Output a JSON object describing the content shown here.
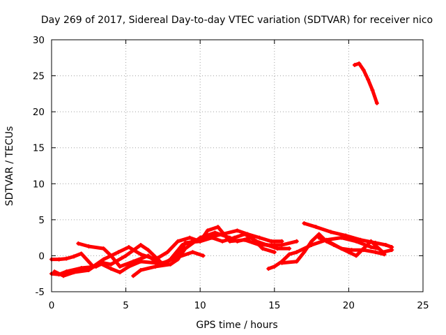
{
  "chart_data": {
    "type": "line",
    "title": "Day 269 of 2017, Sidereal Day-to-day VTEC variation (SDTVAR) for receiver nico",
    "xlabel": "GPS time / hours",
    "ylabel": "SDTVAR / TECUs",
    "xlim": [
      0,
      25
    ],
    "ylim": [
      -5,
      30
    ],
    "x_ticks": [
      0,
      5,
      10,
      15,
      20,
      25
    ],
    "y_ticks": [
      -5,
      0,
      5,
      10,
      15,
      20,
      25,
      30
    ],
    "grid": true,
    "color": "#ff0000",
    "series": [
      {
        "name": "track-1",
        "x": [
          0,
          0.5,
          1,
          1.5,
          2.0,
          2.8,
          3.5,
          4.5,
          5.2,
          6.0,
          7.0,
          7.8,
          8.5,
          9.3,
          10.0,
          10.8,
          11.5,
          12.3,
          13.0,
          13.8,
          14.5,
          15.2,
          16.0
        ],
        "y": [
          -0.5,
          -0.5,
          -0.4,
          -0.1,
          0.3,
          -1.5,
          -0.5,
          0.5,
          1.2,
          0.2,
          -0.5,
          0.5,
          2.0,
          2.5,
          2.0,
          2.5,
          2.0,
          2.5,
          3.0,
          2.0,
          1.5,
          1.0,
          1.0
        ]
      },
      {
        "name": "track-2",
        "x": [
          0,
          0.5,
          1.0,
          2.0,
          3.0,
          3.5,
          4.0,
          5.0,
          6.0,
          6.5,
          7.5,
          8.5,
          9.0,
          10.0,
          10.5,
          11.2,
          12.0,
          13.0,
          14.0,
          15.0,
          15.5,
          16.5
        ],
        "y": [
          -2.5,
          -2.6,
          -2.2,
          -1.7,
          -1.5,
          -1.0,
          -1.2,
          0.0,
          1.5,
          0.8,
          -1.2,
          0.0,
          1.8,
          2.0,
          3.5,
          4.0,
          2.0,
          2.2,
          1.5,
          1.5,
          1.5,
          2.0
        ]
      },
      {
        "name": "track-3",
        "x": [
          1.8,
          2.5,
          3.5,
          4.0,
          4.6,
          5.5,
          6.5,
          7.0,
          7.5,
          8.0,
          8.8,
          9.5,
          10.5,
          11.5,
          12.5,
          13.2,
          14.0,
          14.8,
          15.5
        ],
        "y": [
          1.7,
          1.3,
          1.0,
          0.0,
          -1.5,
          -0.8,
          0.0,
          -0.8,
          -1.2,
          -0.5,
          1.5,
          2.0,
          2.5,
          3.0,
          3.5,
          3.0,
          2.5,
          2.0,
          2.0
        ]
      },
      {
        "name": "track-4",
        "x": [
          0.2,
          0.8,
          1.5,
          2.5,
          3.2,
          4.0,
          4.6,
          5.2,
          6.0,
          7.0,
          7.5,
          8.5,
          9.5,
          10.2
        ],
        "y": [
          -2.2,
          -2.8,
          -2.3,
          -2.0,
          -1.0,
          -1.8,
          -2.3,
          -1.5,
          -0.8,
          -1.0,
          -1.0,
          -0.2,
          0.5,
          0.0
        ]
      },
      {
        "name": "track-5",
        "x": [
          5.5,
          6.0,
          7.0,
          8.0,
          8.5,
          9.0,
          10.0,
          11.0,
          12.0,
          12.5,
          13.5,
          14.2,
          15.0
        ],
        "y": [
          -2.8,
          -2.0,
          -1.5,
          -1.2,
          -0.5,
          1.0,
          2.5,
          3.2,
          2.5,
          2.0,
          2.5,
          1.0,
          0.5
        ]
      },
      {
        "name": "track-6",
        "x": [
          14.6,
          15.0,
          15.5,
          16.0,
          16.5,
          17.5,
          18.5,
          19.5,
          20.5,
          21.5,
          22.0
        ],
        "y": [
          -1.8,
          -1.5,
          -0.8,
          0.2,
          0.5,
          1.5,
          2.2,
          2.5,
          2.0,
          1.2,
          1.0
        ]
      },
      {
        "name": "track-7",
        "x": [
          15.5,
          16.5,
          17.0,
          17.5,
          18.0,
          18.5,
          19.0,
          20.0,
          20.5,
          21.0,
          21.5,
          22.3,
          22.9
        ],
        "y": [
          -1.0,
          -0.8,
          0.5,
          2.0,
          3.0,
          2.0,
          1.5,
          0.5,
          0.0,
          1.0,
          2.0,
          0.5,
          0.8
        ]
      },
      {
        "name": "track-8",
        "x": [
          17.0,
          17.8,
          18.8,
          19.8,
          20.8,
          21.8,
          22.5,
          22.9
        ],
        "y": [
          4.5,
          4.0,
          3.3,
          2.8,
          2.2,
          1.8,
          1.5,
          1.2
        ]
      },
      {
        "name": "track-9",
        "x": [
          18.0,
          18.8,
          19.5,
          20.2,
          21.0,
          21.8,
          22.4
        ],
        "y": [
          2.5,
          1.8,
          1.0,
          0.8,
          0.8,
          0.5,
          0.2
        ]
      },
      {
        "name": "track-10",
        "x": [
          20.4,
          20.7,
          21.0,
          21.3,
          21.6,
          21.9
        ],
        "y": [
          26.5,
          26.7,
          25.8,
          24.5,
          23.0,
          21.2
        ]
      }
    ]
  }
}
